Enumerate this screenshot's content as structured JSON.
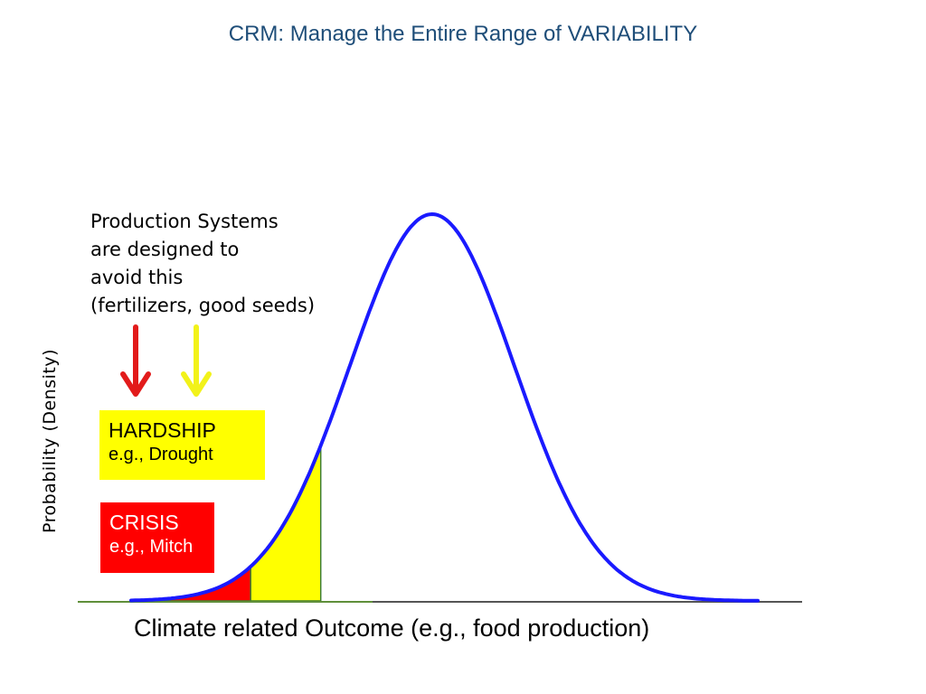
{
  "slide": {
    "title": "CRM: Manage the Entire Range of VARIABILITY"
  },
  "note": {
    "lines": [
      "Production Systems",
      "are designed to",
      "avoid this",
      "(fertilizers, good seeds)"
    ]
  },
  "boxes": {
    "hardship": {
      "title": "HARDSHIP",
      "example": "e.g., Drought",
      "color": "#ffff00"
    },
    "crisis": {
      "title": "CRISIS",
      "example": "e.g., Mitch",
      "color": "#ff0000"
    }
  },
  "arrows": {
    "crisis_color": "#e21b1b",
    "hardship_color": "#f2f21a"
  },
  "axes": {
    "y_label": "Probability (Density)",
    "x_label": "Climate related Outcome (e.g., food production)"
  },
  "chart_data": {
    "type": "area",
    "distribution": "normal",
    "x_range": [
      -3.65,
      3.95
    ],
    "mean": 0,
    "std": 1,
    "curve_color": "#1a1aff",
    "regions": [
      {
        "range": [
          -3.65,
          -2.2
        ],
        "color": "#ff0000"
      },
      {
        "range": [
          -2.2,
          -1.35
        ],
        "color": "#ffff00"
      }
    ]
  }
}
